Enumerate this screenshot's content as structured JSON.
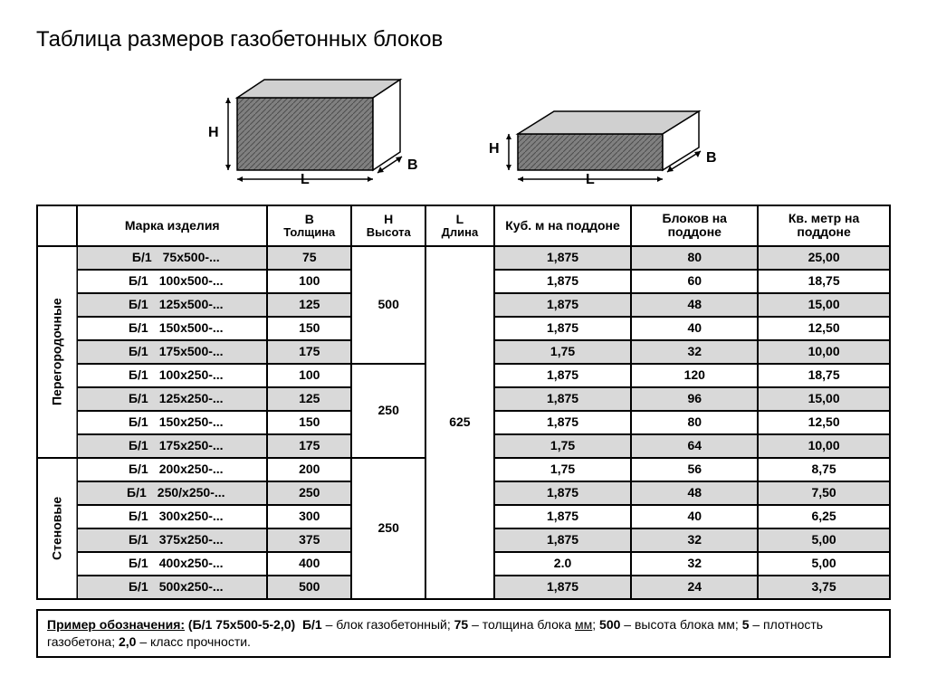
{
  "title": "Таблица размеров газобетонных блоков",
  "diagrams": {
    "labels": {
      "H": "H",
      "L": "L",
      "B": "B"
    }
  },
  "columns": {
    "cat": "",
    "marka": "Марка изделия",
    "b": {
      "top": "B",
      "sub": "Толщина"
    },
    "h": {
      "top": "H",
      "sub": "Высота"
    },
    "l": {
      "top": "L",
      "sub": "Длина"
    },
    "kub": "Куб. м на поддоне",
    "blok": "Блоков на поддоне",
    "kv": "Кв. метр на поддоне"
  },
  "groups": [
    {
      "category": "Перегородочные",
      "subgroups": [
        {
          "H": "500",
          "rows": [
            {
              "marka_pre": "Б/1",
              "marka_size": "75x500-...",
              "b": "75",
              "kub": "1,875",
              "blok": "80",
              "kv": "25,00",
              "shade": true
            },
            {
              "marka_pre": "Б/1",
              "marka_size": "100x500-...",
              "b": "100",
              "kub": "1,875",
              "blok": "60",
              "kv": "18,75",
              "shade": false
            },
            {
              "marka_pre": "Б/1",
              "marka_size": "125x500-...",
              "b": "125",
              "kub": "1,875",
              "blok": "48",
              "kv": "15,00",
              "shade": true
            },
            {
              "marka_pre": "Б/1",
              "marka_size": "150x500-...",
              "b": "150",
              "kub": "1,875",
              "blok": "40",
              "kv": "12,50",
              "shade": false
            },
            {
              "marka_pre": "Б/1",
              "marka_size": "175x500-...",
              "b": "175",
              "kub": "1,75",
              "blok": "32",
              "kv": "10,00",
              "shade": true
            }
          ]
        },
        {
          "H": "250",
          "rows": [
            {
              "marka_pre": "Б/1",
              "marka_size": "100x250-...",
              "b": "100",
              "kub": "1,875",
              "blok": "120",
              "kv": "18,75",
              "shade": false
            },
            {
              "marka_pre": "Б/1",
              "marka_size": "125x250-...",
              "b": "125",
              "kub": "1,875",
              "blok": "96",
              "kv": "15,00",
              "shade": true
            },
            {
              "marka_pre": "Б/1",
              "marka_size": "150x250-...",
              "b": "150",
              "kub": "1,875",
              "blok": "80",
              "kv": "12,50",
              "shade": false
            },
            {
              "marka_pre": "Б/1",
              "marka_size": "175x250-...",
              "b": "175",
              "kub": "1,75",
              "blok": "64",
              "kv": "10,00",
              "shade": true
            }
          ]
        }
      ]
    },
    {
      "category": "Стеновые",
      "subgroups": [
        {
          "H": "250",
          "rows": [
            {
              "marka_pre": "Б/1",
              "marka_size": "200x250-...",
              "b": "200",
              "kub": "1,75",
              "blok": "56",
              "kv": "8,75",
              "shade": false
            },
            {
              "marka_pre": "Б/1",
              "marka_size": "250/x250-...",
              "b": "250",
              "kub": "1,875",
              "blok": "48",
              "kv": "7,50",
              "shade": true
            },
            {
              "marka_pre": "Б/1",
              "marka_size": "300x250-...",
              "b": "300",
              "kub": "1,875",
              "blok": "40",
              "kv": "6,25",
              "shade": false
            },
            {
              "marka_pre": "Б/1",
              "marka_size": "375x250-...",
              "b": "375",
              "kub": "1,875",
              "blok": "32",
              "kv": "5,00",
              "shade": true
            },
            {
              "marka_pre": "Б/1",
              "marka_size": "400x250-...",
              "b": "400",
              "kub": "2.0",
              "blok": "32",
              "kv": "5,00",
              "shade": false
            },
            {
              "marka_pre": "Б/1",
              "marka_size": "500x250-...",
              "b": "500",
              "kub": "1,875",
              "blok": "24",
              "kv": "3,75",
              "shade": true
            }
          ]
        }
      ]
    }
  ],
  "L_value": "625",
  "note": {
    "lead": "Пример обозначения:",
    "example": "(Б/1 75x500-5-2,0)",
    "parts": [
      {
        "b": "Б/1",
        "t": " – блок газобетонный; "
      },
      {
        "b": "75",
        "t": " – толщина блока ",
        "u": "мм",
        "t2": "; "
      },
      {
        "b": "500",
        "t": " – высота блока мм; "
      },
      {
        "b": "5",
        "t": " – плотность газобетона; "
      },
      {
        "b": "2,0",
        "t": " – класс прочности."
      }
    ]
  },
  "style": {
    "border_color": "#000000",
    "shade_color": "#d9d9d9",
    "hatch_colors": {
      "fill": "#808080",
      "line": "#4d4d4d"
    }
  }
}
